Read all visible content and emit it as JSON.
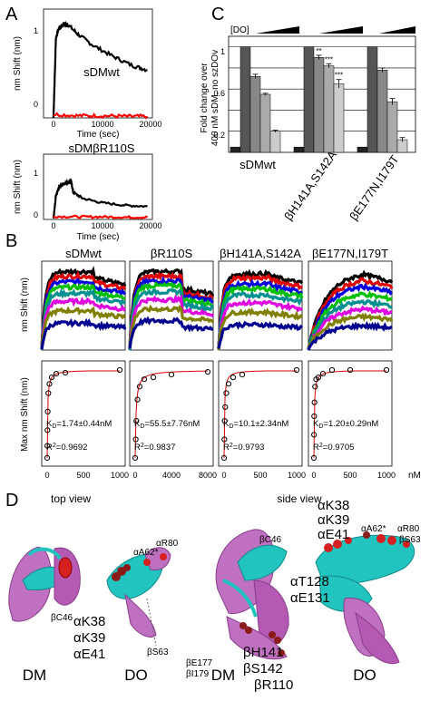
{
  "figure": {
    "panel_labels": {
      "a": "A",
      "b": "B",
      "c": "C",
      "d": "D"
    }
  },
  "panel_a": {
    "top": {
      "construct_label": "sDMwt",
      "ylabel": "nm Shift (nm)",
      "xlabel": "Time (sec)",
      "ylim": [
        0,
        1.5
      ],
      "yticks": [
        "0",
        "1"
      ],
      "xlim": [
        -2000,
        20000
      ],
      "xticks": [
        "0",
        "10000",
        "20000"
      ]
    },
    "bottom": {
      "construct_label": "sDMβR110S",
      "ylabel": "nm Shift (nm)",
      "xlabel": "Time (sec)",
      "ylim": [
        0,
        1.5
      ],
      "yticks": [
        "0",
        "1"
      ],
      "xlim": [
        -2000,
        20000
      ],
      "xticks": [
        "0",
        "10000",
        "20000"
      ]
    }
  },
  "panel_b": {
    "sensorgram_ylabel": "nm Shift (nm)",
    "binding_ylabel": "Max nm Shift (nm)",
    "x_unit": "nM",
    "columns": [
      {
        "title": "sDMwt",
        "kd": "K<sub>D</sub>",
        "kd_text": "=1.74±0.44nM",
        "r2": "R",
        "r2_text": "=0.9692",
        "xticks": [
          "0",
          "500",
          "1000"
        ],
        "xmax": 1000
      },
      {
        "title": "βR110S",
        "kd_text": "=55.5±7.76nM",
        "r2_text": "=0.9837",
        "xticks": [
          "0",
          "4000",
          "8000"
        ],
        "xmax": 8000
      },
      {
        "title": "βH141A,S142A",
        "kd_text": "=10.1±2.34nM",
        "r2_text": "=0.9793",
        "xticks": [
          "0",
          "500",
          "1000"
        ],
        "xmax": 1000
      },
      {
        "title": "βE177N,I179T",
        "kd_text": "=1.20±0.29nM",
        "r2_text": "=0.9705",
        "xticks": [
          "0",
          "500",
          "1000"
        ],
        "xmax": 1000
      }
    ],
    "kd_prefix": "K",
    "kd_sub": "D",
    "r2_prefix": "R",
    "r2_sup": "2"
  },
  "panel_c": {
    "ylabel_line1": "Fold change over",
    "ylabel_line2": "400 nM sDM, no szDOv",
    "do_label": "[DO]",
    "yticks": [
      "0.2",
      "0.6",
      "1"
    ],
    "groups": [
      "sDMwt",
      "βH141A,S142A",
      "βE177N,I179T"
    ],
    "significance": [
      "**",
      "***",
      "***"
    ]
  },
  "panel_d": {
    "view_labels": [
      "top view",
      "side view"
    ],
    "molecule_labels": [
      "DM",
      "DO",
      "DM",
      "DO"
    ],
    "residues": {
      "bC46_left": "βC46",
      "aR80_a": "αR80",
      "aA62_a": "αA62*",
      "aK38_a": "αK38",
      "aK39_a": "αK39",
      "aE41_a": "αE41",
      "bS63_a": "βS63",
      "bC46_mid": "βC46",
      "bE177": "βE177",
      "bI179": "βI179",
      "bH141": "βH141",
      "bS142": "βS142",
      "bR110": "βR110",
      "aT128": "αT128",
      "aE131": "αE131",
      "aK38_b": "αK38",
      "aK39_b": "αK39",
      "aE41_b": "αE41",
      "aA62_b": "αA62*",
      "aR80_b": "αR80",
      "bS63_b": "βS63"
    }
  },
  "chart_data": [
    {
      "type": "line",
      "title": "sDMwt",
      "xlabel": "Time (sec)",
      "ylabel": "nm Shift (nm)",
      "xlim": [
        -2000,
        20000
      ],
      "ylim": [
        0,
        1.5
      ],
      "series": [
        {
          "color": "#000000",
          "x": [
            0,
            500,
            1000,
            2000,
            3000,
            5000,
            8000,
            12000,
            16000,
            19000
          ],
          "y": [
            0.0,
            1.1,
            1.22,
            1.3,
            1.28,
            1.15,
            1.0,
            0.85,
            0.72,
            0.66
          ]
        },
        {
          "color": "#ff0000",
          "x": [
            0,
            5000,
            10000,
            15000,
            19000
          ],
          "y": [
            0.05,
            0.03,
            0.03,
            0.02,
            0.02
          ]
        }
      ]
    },
    {
      "type": "line",
      "title": "sDMβR110S",
      "xlabel": "Time (sec)",
      "ylabel": "nm Shift (nm)",
      "xlim": [
        -2000,
        20000
      ],
      "ylim": [
        0,
        1.5
      ],
      "series": [
        {
          "color": "#000000",
          "x": [
            0,
            500,
            1000,
            2000,
            3000,
            3600,
            4000,
            6000,
            10000,
            15000,
            19000
          ],
          "y": [
            0.0,
            0.55,
            0.72,
            0.82,
            0.86,
            0.86,
            0.62,
            0.48,
            0.38,
            0.32,
            0.3
          ]
        },
        {
          "color": "#ff0000",
          "x": [
            0,
            5000,
            10000,
            15000,
            19000
          ],
          "y": [
            0.07,
            0.06,
            0.06,
            0.05,
            0.05
          ]
        }
      ]
    },
    {
      "type": "bar",
      "ylabel": "Fold change over 400 nM sDM, no szDOv",
      "ylim": [
        0,
        1.1
      ],
      "categories": [
        "sDMwt",
        "βH141A,S142A",
        "βE177N,I179T"
      ],
      "series": [
        {
          "color": "#222222",
          "values": [
            0.05,
            0.05,
            0.05
          ]
        },
        {
          "color": "#555555",
          "values": [
            1.0,
            1.0,
            1.0
          ]
        },
        {
          "color": "#888888",
          "values": [
            0.72,
            0.9,
            0.78
          ]
        },
        {
          "color": "#aaaaaa",
          "values": [
            0.55,
            0.82,
            0.48
          ]
        },
        {
          "color": "#cccccc",
          "values": [
            0.2,
            0.65,
            0.12
          ]
        }
      ],
      "errors": [
        [
          0.0,
          0.0,
          0.0
        ],
        [
          0.0,
          0.0,
          0.0
        ],
        [
          0.02,
          0.02,
          0.02
        ],
        [
          0.01,
          0.02,
          0.03
        ],
        [
          0.01,
          0.04,
          0.02
        ]
      ]
    },
    {
      "type": "line",
      "title": "sDMwt",
      "ylabel": "Max nm Shift (nm)",
      "xlim": [
        0,
        1000
      ],
      "series": [
        {
          "name": "data",
          "x": [
            0,
            2,
            4,
            8,
            16,
            31,
            62,
            125,
            250,
            1000
          ],
          "y": [
            0.05,
            0.18,
            0.35,
            0.55,
            0.75,
            0.85,
            0.92,
            0.96,
            0.97,
            1.0
          ]
        }
      ]
    },
    {
      "type": "line",
      "title": "βR110S",
      "xlim": [
        0,
        8000
      ],
      "series": [
        {
          "name": "data",
          "x": [
            0,
            62,
            125,
            250,
            500,
            1000,
            2000,
            4000,
            8000
          ],
          "y": [
            0.05,
            0.25,
            0.45,
            0.68,
            0.82,
            0.9,
            0.92,
            0.95,
            0.98
          ]
        }
      ]
    },
    {
      "type": "line",
      "title": "βH141A,S142A",
      "xlim": [
        0,
        1000
      ],
      "series": [
        {
          "name": "data",
          "x": [
            0,
            4,
            8,
            16,
            31,
            62,
            125,
            250,
            1000
          ],
          "y": [
            0.05,
            0.25,
            0.45,
            0.6,
            0.75,
            0.85,
            0.92,
            0.95,
            1.0
          ]
        }
      ]
    },
    {
      "type": "line",
      "title": "βE177N,I179T",
      "xlim": [
        0,
        1000
      ],
      "series": [
        {
          "name": "data",
          "x": [
            0,
            2,
            4,
            8,
            16,
            31,
            62,
            125,
            250,
            500,
            1000
          ],
          "y": [
            0.05,
            0.3,
            0.5,
            0.65,
            0.82,
            0.9,
            0.92,
            0.96,
            1.0,
            1.0,
            1.0
          ]
        }
      ]
    }
  ]
}
